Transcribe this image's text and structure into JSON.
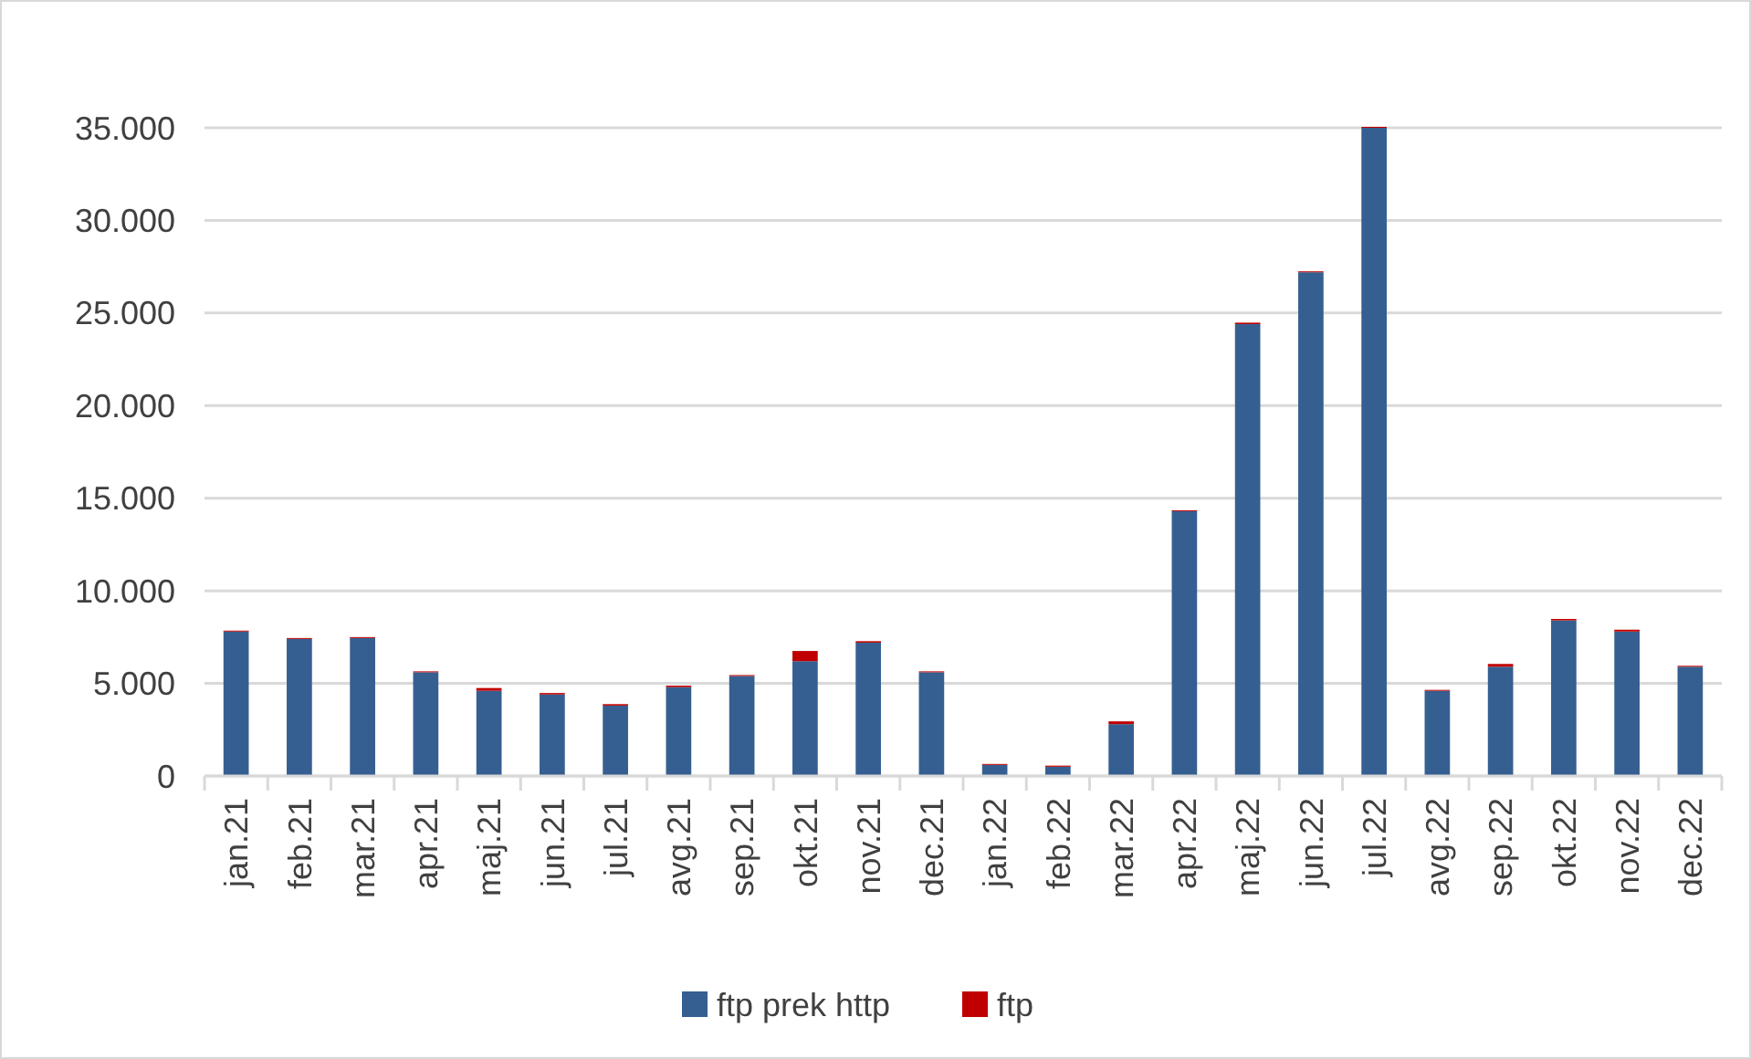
{
  "chart_data": {
    "type": "bar",
    "stacked": true,
    "categories": [
      "jan.21",
      "feb.21",
      "mar.21",
      "apr.21",
      "maj.21",
      "jun.21",
      "jul.21",
      "avg.21",
      "sep.21",
      "okt.21",
      "nov.21",
      "dec.21",
      "jan.22",
      "feb.22",
      "mar.22",
      "apr.22",
      "maj.22",
      "jun.22",
      "jul.22",
      "avg.22",
      "sep.22",
      "okt.22",
      "nov.22",
      "dec.22"
    ],
    "series": [
      {
        "name": "ftp prek http",
        "color": "#365f91",
        "values": [
          7800,
          7400,
          7450,
          5600,
          4600,
          4400,
          3800,
          4800,
          5400,
          6200,
          7200,
          5600,
          600,
          500,
          2800,
          14300,
          24400,
          27200,
          35000,
          4600,
          5900,
          8400,
          7800,
          5900
        ]
      },
      {
        "name": "ftp",
        "color": "#c00000",
        "values": [
          50,
          50,
          50,
          50,
          150,
          80,
          80,
          80,
          50,
          550,
          80,
          50,
          50,
          60,
          150,
          50,
          80,
          50,
          50,
          50,
          150,
          80,
          100,
          50
        ]
      }
    ],
    "ylim": [
      0,
      35000
    ],
    "yticks": [
      {
        "value": 0,
        "label": "0"
      },
      {
        "value": 5000,
        "label": "5.000"
      },
      {
        "value": 10000,
        "label": "10.000"
      },
      {
        "value": 15000,
        "label": "15.000"
      },
      {
        "value": 20000,
        "label": "20.000"
      },
      {
        "value": 25000,
        "label": "25.000"
      },
      {
        "value": 30000,
        "label": "30.000"
      },
      {
        "value": 35000,
        "label": "35.000"
      }
    ],
    "grid": "y",
    "legend": "bottom"
  }
}
